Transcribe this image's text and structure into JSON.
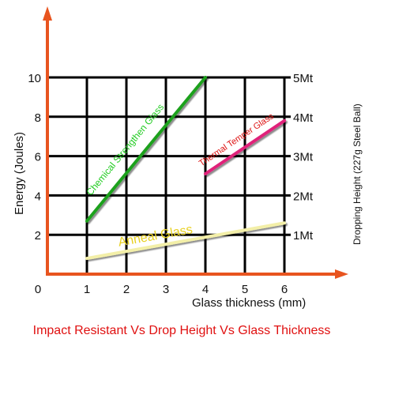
{
  "caption": "Impact Resistant Vs Drop Height Vs Glass Thickness",
  "chart_data": {
    "type": "line",
    "title": "",
    "xlabel": "Glass thickness (mm)",
    "ylabel": "Energy (Joules)",
    "y2label": "Dropping Height (227g Steel Ball)",
    "xlim": [
      0,
      6
    ],
    "ylim": [
      0,
      10
    ],
    "x_ticks": [
      0,
      1,
      2,
      3,
      4,
      5,
      6
    ],
    "x_tick_labels": [
      "0",
      "1",
      "2",
      "3",
      "4",
      "5",
      "6"
    ],
    "y_ticks": [
      2,
      4,
      6,
      8,
      10
    ],
    "y_tick_labels": [
      "2",
      "4",
      "6",
      "8",
      "10"
    ],
    "y2_ticks": [
      2,
      4,
      6,
      8,
      10
    ],
    "y2_tick_labels": [
      "1Mt",
      "2Mt",
      "3Mt",
      "4Mt",
      "5Mt"
    ],
    "grid": true,
    "axis_color": "#e8541f",
    "series": [
      {
        "name": "Chemical Strengthen Glass",
        "x": [
          1,
          4
        ],
        "y": [
          2.7,
          10
        ],
        "color": "#1fa11f",
        "label_color": "#22cc22"
      },
      {
        "name": "Thermal Temper Glass",
        "x": [
          4,
          6
        ],
        "y": [
          5.1,
          7.8
        ],
        "color": "#e0237a",
        "label_color": "#dd1111"
      },
      {
        "name": "Anneal Glass",
        "x": [
          1,
          6
        ],
        "y": [
          0.8,
          2.6
        ],
        "color": "#f3efa8",
        "label_color": "#e8d020"
      }
    ]
  }
}
